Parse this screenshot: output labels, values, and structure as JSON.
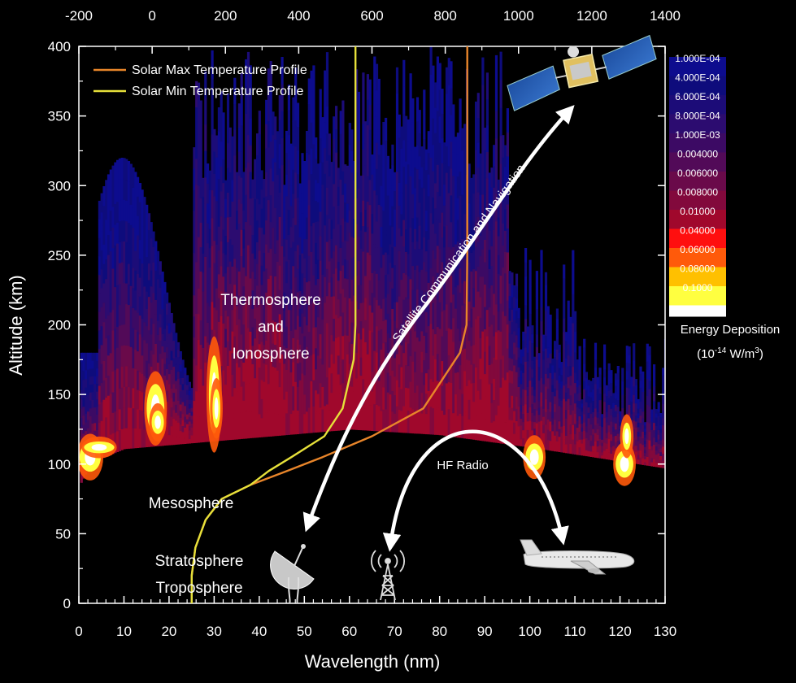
{
  "chart_data": {
    "type": "heatmap",
    "xlabel": "Wavelength (nm)",
    "ylabel": "Altitude (km)",
    "xlim": [
      0,
      130
    ],
    "ylim": [
      0,
      400
    ],
    "x_ticks": [
      "0",
      "10",
      "20",
      "30",
      "40",
      "50",
      "60",
      "70",
      "80",
      "90",
      "100",
      "110",
      "120",
      "130"
    ],
    "y_ticks": [
      "0",
      "50",
      "100",
      "150",
      "200",
      "250",
      "300",
      "350",
      "400"
    ],
    "top_axis": {
      "xlim": [
        -200,
        1400
      ],
      "ticks": [
        "-200",
        "0",
        "200",
        "400",
        "600",
        "800",
        "1000",
        "1200",
        "1400"
      ]
    },
    "colorbar": {
      "title": "Energy Deposition",
      "unit_prefix": "(10",
      "unit_exp": "-14",
      "unit_suffix": " W/m",
      "unit_sup": "3",
      "unit_close": ")",
      "levels": [
        "1.000E-04",
        "4.000E-04",
        "6.000E-04",
        "8.000E-04",
        "1.000E-03",
        "0.004000",
        "0.006000",
        "0.008000",
        "0.01000",
        "0.04000",
        "0.06000",
        "0.08000",
        "0.1000"
      ],
      "colors": [
        "#0d0c8e",
        "#0e0c7c",
        "#1c0c78",
        "#2c0c70",
        "#3c0a64",
        "#520a58",
        "#6a0a4a",
        "#82093c",
        "#a0082c",
        "#ff0f0f",
        "#ff5a0a",
        "#ffc000",
        "#ffff40"
      ],
      "top_color": "#ffffff"
    },
    "series": [
      {
        "name": "Solar Max Temperature Profile",
        "color": "#e8852a",
        "top_axis_x": [
          108,
          108,
          118,
          146,
          190,
          268,
          368,
          465,
          600,
          740,
          840,
          858,
          860,
          860
        ],
        "y": [
          0,
          20,
          40,
          60,
          75,
          85,
          95,
          105,
          120,
          140,
          180,
          200,
          250,
          400
        ]
      },
      {
        "name": "Solar Min Temperature Profile",
        "color": "#e6e03a",
        "top_axis_x": [
          108,
          108,
          118,
          146,
          190,
          268,
          318,
          380,
          470,
          520,
          550,
          555,
          555,
          555
        ],
        "y": [
          0,
          20,
          40,
          60,
          75,
          85,
          95,
          105,
          120,
          140,
          175,
          200,
          250,
          400
        ]
      }
    ],
    "annotations": {
      "thermosphere": [
        "Thermosphere",
        "and",
        "Ionosphere"
      ],
      "mesosphere": "Mesosphere",
      "stratosphere": "Stratosphere",
      "troposphere": "Troposphere",
      "satellite_link": "Satellite Communication and Navigation",
      "hf_radio": "HF Radio"
    },
    "icons": [
      "satellite-icon",
      "satellite-dish-icon",
      "radio-tower-icon",
      "airplane-icon"
    ]
  }
}
